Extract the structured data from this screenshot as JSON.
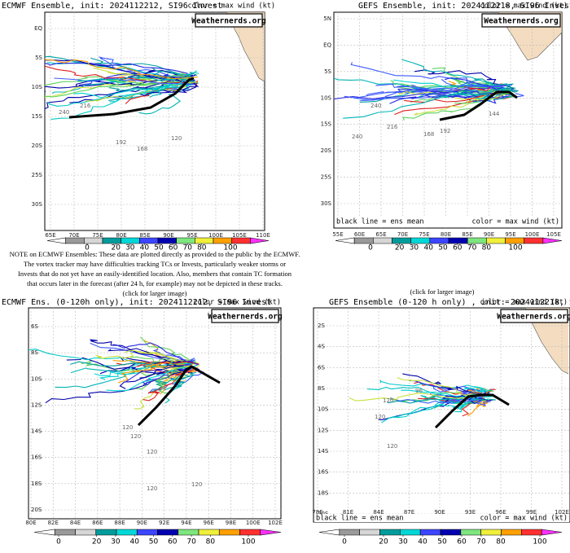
{
  "panels": [
    {
      "title": "ECMWF Ensemble, init: 2024112212, SI96 Invest",
      "legend_note": "color = max wind (kt)",
      "watermark": "Weathernerds.org",
      "lat_labels": [
        "EQ",
        "5S",
        "10S",
        "15S",
        "20S",
        "25S",
        "30S"
      ],
      "lon_labels": [
        "65E",
        "70E",
        "75E",
        "80E",
        "85E",
        "90E",
        "95E",
        "100E",
        "105E",
        "110E"
      ],
      "colorbar_ticks": [
        0,
        20,
        30,
        40,
        50,
        60,
        70,
        80,
        100
      ],
      "track_labels": [
        "240",
        "216",
        "192",
        "168",
        "120"
      ]
    },
    {
      "title": "GEFS Ensemble, init: 2024112218, SI96 Invest",
      "legend_note": "color = max wind (kt)",
      "mean_note": "black line = ens mean",
      "watermark": "Weathernerds.org",
      "lat_labels": [
        "5N",
        "EQ",
        "5S",
        "10S",
        "15S",
        "20S",
        "25S",
        "30S"
      ],
      "lon_labels": [
        "55E",
        "60E",
        "65E",
        "70E",
        "75E",
        "80E",
        "85E",
        "90E",
        "95E",
        "100E",
        "105E"
      ],
      "colorbar_ticks": [
        0,
        20,
        30,
        40,
        50,
        60,
        70,
        80,
        100
      ],
      "track_labels": [
        "240",
        "240",
        "216",
        "192",
        "168",
        "144"
      ]
    },
    {
      "title": "ECMWF Ens. (0-120h only), init: 2024112212, SI96 Invest",
      "legend_note": "color = max wind (kt)",
      "watermark": "Weathernerds.org",
      "lat_labels": [
        "6S",
        "8S",
        "10S",
        "12S",
        "14S",
        "16S",
        "18S",
        "20S"
      ],
      "lon_labels": [
        "80E",
        "82E",
        "84E",
        "86E",
        "88E",
        "90E",
        "92E",
        "94E",
        "96E",
        "98E",
        "100E",
        "102E"
      ],
      "colorbar_ticks": [
        0,
        20,
        30,
        40,
        50,
        60,
        70,
        80,
        100
      ],
      "track_labels": [
        "120",
        "120",
        "120",
        "120",
        "120"
      ]
    },
    {
      "title": "GEFS Ensemble (0-120 h only) , init: 2024112218, SI96 Invest",
      "legend_note": "color = max wind (kt)",
      "mean_note": "black line = ens mean",
      "watermark": "Weathernerds.org",
      "lat_labels": [
        "2S",
        "4S",
        "6S",
        "8S",
        "10S",
        "12S",
        "14S",
        "16S",
        "18S",
        "20S"
      ],
      "lon_labels": [
        "78E",
        "81E",
        "84E",
        "87E",
        "90E",
        "93E",
        "96E",
        "99E",
        "102E"
      ],
      "colorbar_ticks": [
        0,
        20,
        30,
        40,
        50,
        60,
        70,
        80,
        100
      ],
      "track_labels": [
        "96",
        "120",
        "120",
        "120"
      ]
    }
  ],
  "note": [
    "NOTE on ECMWF Ensembles: These data are plotted directly as provided to the public by the ECMWF.",
    "The vortex tracker may have difficulties tracking TCs or Invests, particularly weaker storms or",
    "Invests that do not yet have an easily-identified location. Also, members that contain TC formation",
    "that occurs later in the forecast (after 24 h, for example) may not be depicted in these tracks."
  ],
  "click_left": "(click for larger image)",
  "click_right": "(click for larger image)",
  "colorbar_colors": [
    "#ffffff",
    "#9a9a9a",
    "#d6d6d6",
    "#009c9c",
    "#00d8d8",
    "#3c46ff",
    "#0000b0",
    "#7ee67e",
    "#f0f03c",
    "#ffa000",
    "#ff3030",
    "#ff30ff"
  ]
}
